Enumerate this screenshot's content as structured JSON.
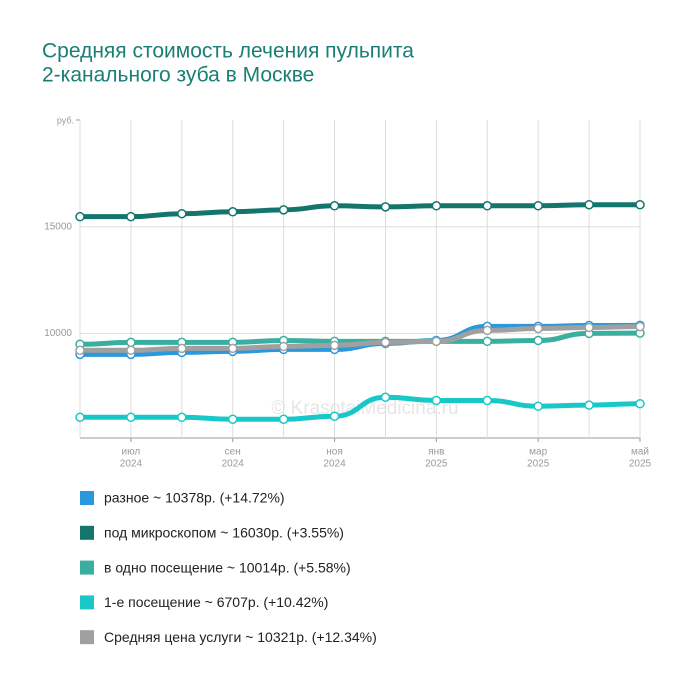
{
  "chart_data": {
    "type": "line",
    "title": [
      "Средняя стоимость лечения пульпита",
      "2-канального зуба в Москве"
    ],
    "y_unit": "руб.",
    "annotation": "© KrasotaiMedicina.ru",
    "categories": [
      null,
      [
        "июл",
        "2024"
      ],
      null,
      [
        "сен",
        "2024"
      ],
      null,
      [
        "ноя",
        "2024"
      ],
      null,
      [
        "янв",
        "2025"
      ],
      null,
      [
        "мар",
        "2025"
      ],
      null,
      [
        "май",
        "2025"
      ]
    ],
    "ylim": [
      5100,
      20000
    ],
    "yticks": [
      10000,
      15000
    ],
    "grid": true,
    "series": [
      {
        "name": "разное ~ 10378р. (+14.72%)",
        "color": "#2b98dc",
        "values": [
          9020,
          9020,
          9110,
          9160,
          9250,
          9250,
          9530,
          9670,
          10330,
          10330,
          10370,
          10378
        ]
      },
      {
        "name": "под микроскопом ~ 16030р. (+3.55%)",
        "color": "#13756b",
        "values": [
          15470,
          15470,
          15610,
          15700,
          15790,
          15980,
          15930,
          15980,
          15980,
          15980,
          16030,
          16030
        ]
      },
      {
        "name": "в одно посещение ~ 10014р. (+5.58%)",
        "color": "#3aafa0",
        "values": [
          9490,
          9580,
          9580,
          9580,
          9670,
          9630,
          9630,
          9630,
          9630,
          9670,
          10000,
          10014
        ]
      },
      {
        "name": "1-е посещение ~ 6707р. (+10.42%)",
        "color": "#18c8c8",
        "values": [
          6070,
          6070,
          6070,
          5980,
          5980,
          6120,
          7010,
          6860,
          6860,
          6590,
          6640,
          6707
        ]
      },
      {
        "name": "Средняя цена услуги ~ 10321р. (+12.34%)",
        "color": "#a0a0a0",
        "values": [
          9210,
          9210,
          9300,
          9300,
          9390,
          9440,
          9580,
          9630,
          10140,
          10230,
          10280,
          10321
        ]
      }
    ]
  }
}
